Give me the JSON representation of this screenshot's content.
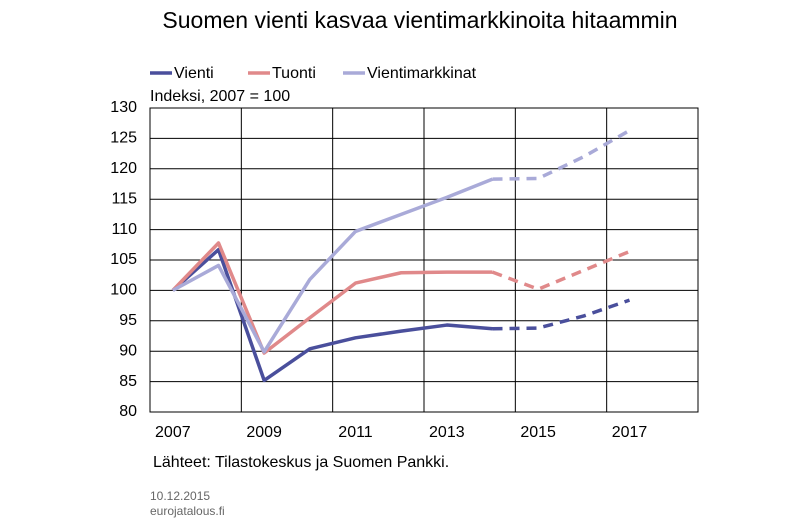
{
  "chart_data": {
    "type": "line",
    "title": "Suomen vienti kasvaa vientimarkkinoita hitaammin",
    "y_label": "Indeksi, 2007 = 100",
    "source": "Lähteet: Tilastokeskus ja Suomen Pankki.",
    "footer_date": "10.12.2015",
    "footer_site": "eurojatalous.fi",
    "categories": [
      "2007",
      null,
      "2009",
      null,
      "2011",
      null,
      "2013",
      null,
      "2015",
      null,
      "2017",
      null
    ],
    "series": [
      {
        "name": "Vienti",
        "color": "#4a4f9c",
        "values": [
          100,
          106.7,
          85.2,
          90.4,
          92.2,
          93.3,
          94.3,
          93.7,
          93.8,
          95.8,
          98.4,
          null
        ]
      },
      {
        "name": "Tuonti",
        "color": "#e0898a",
        "values": [
          100,
          107.8,
          89.7,
          95.5,
          101.2,
          102.9,
          103.0,
          103.0,
          100.2,
          103.3,
          106.4,
          null
        ]
      },
      {
        "name": "Vientimarkkinat",
        "color": "#a9aad8",
        "values": [
          100,
          104.1,
          89.9,
          101.8,
          109.7,
          112.5,
          115.3,
          118.3,
          118.4,
          122.0,
          126.3,
          null
        ]
      }
    ],
    "dashed_from": 7,
    "ylim": [
      80,
      130
    ],
    "yticks": [
      80,
      85,
      90,
      95,
      100,
      105,
      110,
      115,
      120,
      125,
      130
    ],
    "grid": true
  }
}
